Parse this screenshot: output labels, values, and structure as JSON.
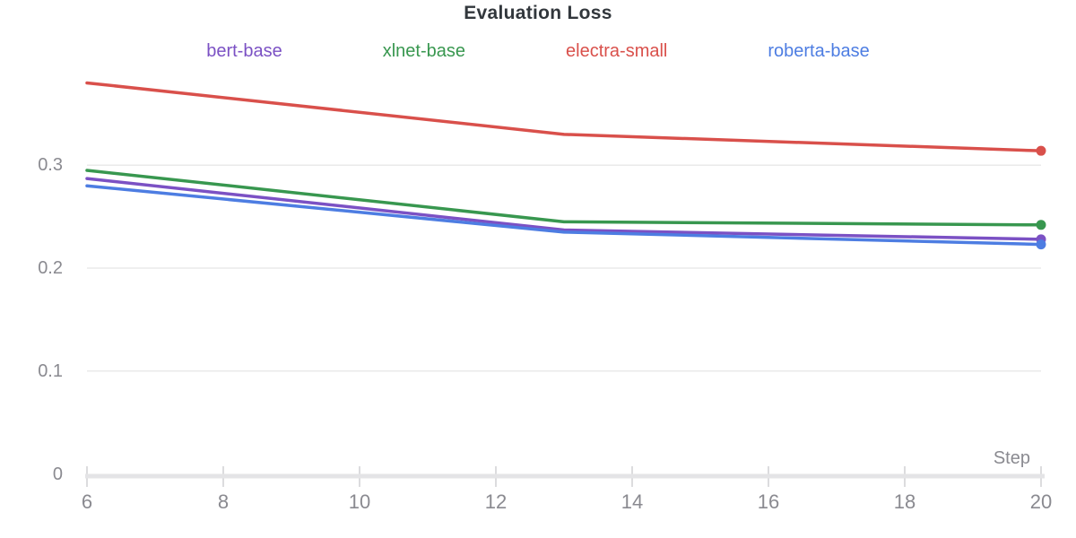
{
  "chart_data": {
    "type": "line",
    "title": "Evaluation Loss",
    "xlabel": "Step",
    "ylabel": "",
    "x": [
      6,
      13,
      20
    ],
    "series": [
      {
        "name": "bert-base",
        "color": "#7b51c4",
        "values": [
          0.287,
          0.237,
          0.228
        ]
      },
      {
        "name": "xlnet-base",
        "color": "#38974f",
        "values": [
          0.295,
          0.245,
          0.242
        ]
      },
      {
        "name": "electra-small",
        "color": "#d9504b",
        "values": [
          0.38,
          0.33,
          0.314
        ]
      },
      {
        "name": "roberta-base",
        "color": "#4d7de2",
        "values": [
          0.28,
          0.235,
          0.223
        ]
      }
    ],
    "x_ticks": [
      6,
      8,
      10,
      12,
      14,
      16,
      18,
      20
    ],
    "x_tick_labels": [
      "6",
      "8",
      "10",
      "12",
      "14",
      "16",
      "18",
      "20"
    ],
    "y_ticks": [
      0,
      0.1,
      0.2,
      0.3
    ],
    "y_tick_labels": [
      "0",
      "0.1",
      "0.2",
      "0.3"
    ],
    "xlim": [
      6,
      20
    ],
    "ylim": [
      0,
      0.39
    ],
    "grid": "horizontal",
    "legend_position": "top",
    "marker": "dot-on-last-point",
    "styles": {
      "grid_color": "#eaeaea",
      "axis_color": "#e4e4e6",
      "tick_color": "#dcdcde",
      "axis_text_color": "#8a8a90",
      "title_color": "#32373c"
    }
  }
}
